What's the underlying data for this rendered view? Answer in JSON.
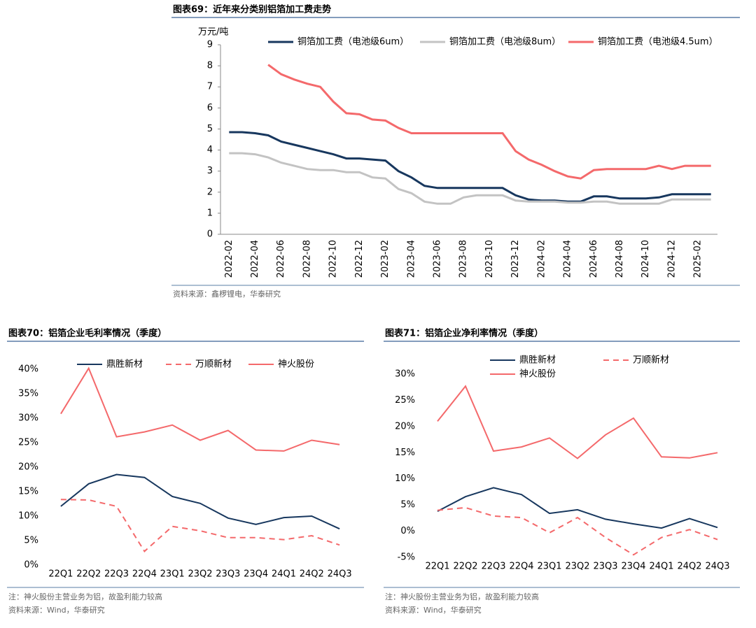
{
  "chart_data": [
    {
      "type": "line",
      "title": "图表69：近年来分类别铝箔加工费走势",
      "y_label": "万元/吨",
      "source": "资料来源：鑫椤锂电，华泰研究",
      "categories": [
        "2022-02",
        null,
        "2022-04",
        null,
        "2022-06",
        null,
        "2022-08",
        null,
        "2022-10",
        null,
        "2022-12",
        null,
        "2023-02",
        null,
        "2023-04",
        null,
        "2023-06",
        null,
        "2023-08",
        null,
        "2023-10",
        null,
        "2023-12",
        null,
        "2024-02",
        null,
        "2024-04",
        null,
        "2024-06",
        null,
        "2024-08",
        null,
        "2024-10",
        null,
        "2024-12",
        null,
        "2025-02",
        null
      ],
      "ylim": [
        0,
        9
      ],
      "yticks": [
        0,
        1,
        2,
        3,
        4,
        5,
        6,
        7,
        8,
        9
      ],
      "series": [
        {
          "name": "铜箔加工费（电池级6um）",
          "color": "#17375e",
          "values": [
            4.85,
            4.85,
            4.8,
            4.7,
            4.4,
            4.25,
            4.1,
            3.95,
            3.8,
            3.6,
            3.6,
            3.55,
            3.5,
            3.0,
            2.7,
            2.3,
            2.2,
            2.2,
            2.2,
            2.2,
            2.2,
            2.2,
            1.85,
            1.65,
            1.6,
            1.6,
            1.55,
            1.55,
            1.8,
            1.8,
            1.7,
            1.7,
            1.7,
            1.75,
            1.9,
            1.9,
            1.9,
            1.9
          ]
        },
        {
          "name": "铜箔加工费（电池级8um）",
          "color": "#c3c3c3",
          "values": [
            3.85,
            3.85,
            3.8,
            3.65,
            3.4,
            3.25,
            3.1,
            3.05,
            3.05,
            2.95,
            2.95,
            2.7,
            2.65,
            2.15,
            1.95,
            1.55,
            1.45,
            1.45,
            1.75,
            1.85,
            1.85,
            1.85,
            1.6,
            1.55,
            1.55,
            1.55,
            1.5,
            1.5,
            1.55,
            1.55,
            1.45,
            1.45,
            1.45,
            1.45,
            1.65,
            1.65,
            1.65,
            1.65
          ]
        },
        {
          "name": "铜箔加工费（电池级4.5um）",
          "color": "#f4696b",
          "values": [
            null,
            null,
            null,
            8.05,
            7.6,
            7.35,
            7.15,
            7.0,
            6.3,
            5.75,
            5.7,
            5.45,
            5.4,
            5.05,
            4.8,
            4.8,
            4.8,
            4.8,
            4.8,
            4.8,
            4.8,
            4.8,
            3.95,
            3.55,
            3.3,
            3.0,
            2.75,
            2.65,
            3.05,
            3.1,
            3.1,
            3.1,
            3.1,
            3.25,
            3.1,
            3.25,
            3.25,
            3.25
          ]
        }
      ]
    },
    {
      "type": "line",
      "title": "图表70：铝箔企业毛利率情况（季度）",
      "note": "注：神火股份主营业务为铝，故盈利能力较高",
      "source": "资料来源：Wind，华泰研究",
      "categories": [
        "22Q1",
        "22Q2",
        "22Q3",
        "22Q4",
        "23Q1",
        "23Q2",
        "23Q3",
        "23Q4",
        "24Q1",
        "24Q2",
        "24Q3"
      ],
      "ylim": [
        0,
        40
      ],
      "yticks": [
        {
          "value": 0,
          "label": "0%"
        },
        {
          "value": 5,
          "label": "5%"
        },
        {
          "value": 10,
          "label": "10%"
        },
        {
          "value": 15,
          "label": "15%"
        },
        {
          "value": 20,
          "label": "20%"
        },
        {
          "value": 25,
          "label": "25%"
        },
        {
          "value": 30,
          "label": "30%"
        },
        {
          "value": 35,
          "label": "35%"
        },
        {
          "value": 40,
          "label": "40%"
        }
      ],
      "series": [
        {
          "name": "鼎胜新材",
          "color": "#17375e",
          "values": [
            12.0,
            16.6,
            18.5,
            17.9,
            14.0,
            12.6,
            9.6,
            8.3,
            9.7,
            10.0,
            7.4
          ]
        },
        {
          "name": "万顺新材",
          "color": "#f4696b",
          "dashed": true,
          "values": [
            13.4,
            13.3,
            12.0,
            2.8,
            7.9,
            7.0,
            5.6,
            5.6,
            5.2,
            6.0,
            4.1
          ]
        },
        {
          "name": "神火股份",
          "color": "#f4696b",
          "values": [
            30.9,
            40.2,
            26.2,
            27.2,
            28.6,
            25.5,
            27.5,
            23.5,
            23.3,
            25.5,
            24.6
          ]
        }
      ]
    },
    {
      "type": "line",
      "title": "图表71：铝箔企业净利率情况（季度）",
      "note": "注：神火股份主营业务为铝，故盈利能力较高",
      "source": "资料来源：Wind，华泰研究",
      "categories": [
        "22Q1",
        "22Q2",
        "22Q3",
        "22Q4",
        "23Q1",
        "23Q2",
        "23Q3",
        "23Q4",
        "24Q1",
        "24Q2",
        "24Q3"
      ],
      "ylim": [
        -5,
        30
      ],
      "yticks": [
        {
          "value": -5,
          "label": "-5%"
        },
        {
          "value": 0,
          "label": "0%"
        },
        {
          "value": 5,
          "label": "5%"
        },
        {
          "value": 10,
          "label": "10%"
        },
        {
          "value": 15,
          "label": "15%"
        },
        {
          "value": 20,
          "label": "20%"
        },
        {
          "value": 25,
          "label": "25%"
        },
        {
          "value": 30,
          "label": "30%"
        }
      ],
      "series": [
        {
          "name": "鼎胜新材",
          "color": "#17375e",
          "values": [
            3.8,
            6.6,
            8.3,
            7.0,
            3.4,
            4.1,
            2.3,
            1.4,
            0.6,
            2.4,
            0.7
          ]
        },
        {
          "name": "万顺新材",
          "color": "#f4696b",
          "dashed": true,
          "values": [
            4.0,
            4.5,
            2.9,
            2.6,
            -0.3,
            2.6,
            -1.2,
            -4.5,
            -1.2,
            0.3,
            -1.6
          ]
        },
        {
          "name": "神火股份",
          "color": "#f4696b",
          "values": [
            21.0,
            27.7,
            15.3,
            16.1,
            17.8,
            13.9,
            18.4,
            21.6,
            14.2,
            14.0,
            15.0
          ]
        }
      ]
    }
  ]
}
